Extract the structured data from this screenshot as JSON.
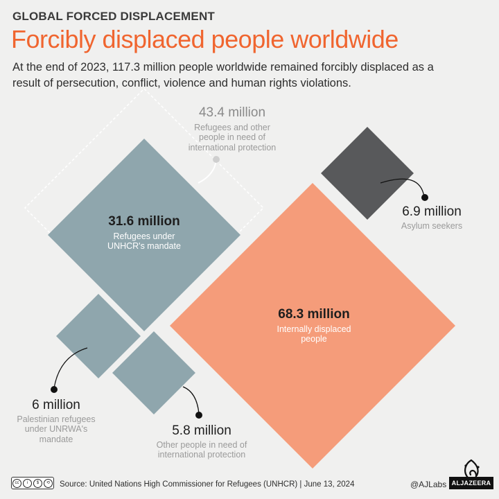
{
  "header": {
    "kicker": "GLOBAL FORCED DISPLACEMENT",
    "title": "Forcibly displaced people worldwide",
    "subtitle": "At the end of 2023, 117.3 million people worldwide remained forcibly displaced as a result of persecution, conflict, violence and human rights violations."
  },
  "diagram": {
    "refugees_total": {
      "value": "43.4 million",
      "label": "Refugees and other people in need of international protection"
    },
    "unhcr": {
      "value": "31.6 million",
      "label": "Refugees under UNHCR's mandate"
    },
    "asylum": {
      "value": "6.9 million",
      "label": "Asylum seekers"
    },
    "idp": {
      "value": "68.3 million",
      "label": "Internally displaced people"
    },
    "palestinian": {
      "value": "6 million",
      "label": "Palestinian refugees under UNRWA's mandate"
    },
    "other": {
      "value": "5.8 million",
      "label": "Other people in need of international protection"
    }
  },
  "colors": {
    "refugees": "#8fa6ad",
    "asylum": "#58595b",
    "idp": "#f59c7a",
    "title": "#f0652f"
  },
  "footer": {
    "license_badge": "cc BY NC SA",
    "source": "Source: United Nations High Commissioner for Refugees (UNHCR) | June 13, 2024",
    "handle": "@AJLabs",
    "brand": "ALJAZEERA"
  }
}
